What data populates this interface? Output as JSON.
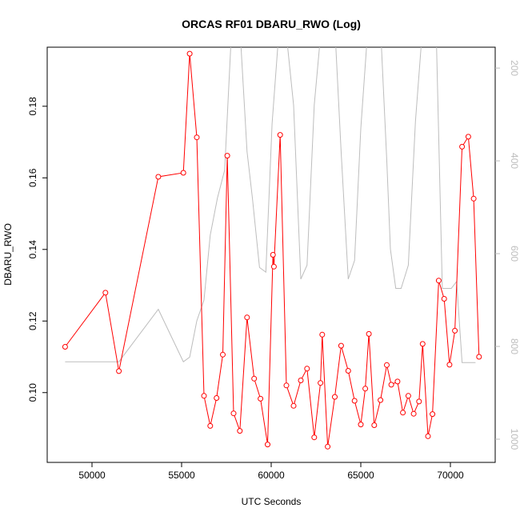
{
  "chart_data": {
    "type": "line",
    "title": "ORCAS RF01 DBARU_RWO (Log)",
    "xlabel": "UTC Seconds",
    "ylabel": "DBARU_RWO",
    "xlim": [
      47500,
      72500
    ],
    "ylim": [
      0.0805,
      0.1965
    ],
    "x_ticks": [
      50000,
      55000,
      60000,
      65000,
      70000
    ],
    "y_ticks": [
      0.1,
      0.12,
      0.14,
      0.16,
      0.18
    ],
    "y_tick_labels": [
      "0.10",
      "0.12",
      "0.14",
      "0.16",
      "0.18"
    ],
    "right_axis": {
      "ylim": [
        1050,
        155
      ],
      "ticks": [
        200,
        400,
        600,
        800,
        1000
      ],
      "tick_labels": [
        "200",
        "400",
        "600",
        "800",
        "1000"
      ]
    },
    "grid": false,
    "series": [
      {
        "color": "#ff0000",
        "marker": "open-circle",
        "x": [
          48500,
          50750,
          51500,
          53700,
          55100,
          55450,
          55850,
          56250,
          56600,
          56950,
          57300,
          57550,
          57900,
          58250,
          58650,
          59050,
          59400,
          59800,
          60100,
          60150,
          60500,
          60850,
          61250,
          61650,
          62000,
          62400,
          62750,
          62850,
          63150,
          63550,
          63900,
          64300,
          64650,
          65000,
          65250,
          65450,
          65750,
          66100,
          66450,
          66700,
          67050,
          67350,
          67650,
          67950,
          68250,
          68450,
          68750,
          69000,
          69350,
          69650,
          69950,
          70250,
          70650,
          71000,
          71300,
          71600
        ],
        "y": [
          0.1128,
          0.1279,
          0.106,
          0.1603,
          0.1614,
          0.1947,
          0.1713,
          0.0991,
          0.0907,
          0.0985,
          0.1106,
          0.1662,
          0.0942,
          0.0893,
          0.121,
          0.1039,
          0.0983,
          0.0855,
          0.1385,
          0.1352,
          0.172,
          0.102,
          0.0963,
          0.1034,
          0.1067,
          0.0875,
          0.1027,
          0.1162,
          0.0849,
          0.0988,
          0.1131,
          0.1061,
          0.0977,
          0.0911,
          0.1011,
          0.1164,
          0.0909,
          0.0979,
          0.1077,
          0.1022,
          0.1031,
          0.0944,
          0.0991,
          0.0941,
          0.0975,
          0.1136,
          0.0878,
          0.094,
          0.1313,
          0.1262,
          0.1078,
          0.1173,
          0.1687,
          0.1715,
          0.1542,
          0.11
        ]
      },
      {
        "color": "#bdbdbd",
        "axis": "right",
        "x": [
          48500,
          50750,
          51500,
          53700,
          55100,
          55450,
          55850,
          56250,
          56600,
          57000,
          57400,
          57800,
          58250,
          58650,
          58950,
          59350,
          59700,
          60050,
          60450,
          60800,
          61250,
          61650,
          62000,
          62400,
          62800,
          63200,
          63550,
          63900,
          64300,
          64650,
          65000,
          65400,
          65750,
          66100,
          66450,
          66650,
          66950,
          67250,
          67650,
          68050,
          68450,
          68750,
          69200,
          69550,
          69800,
          70050,
          70350,
          70650,
          71100,
          71400
        ],
        "y": [
          833,
          833,
          833,
          720,
          833,
          823,
          745,
          700,
          560,
          480,
          420,
          110,
          110,
          380,
          480,
          630,
          640,
          320,
          110,
          110,
          280,
          655,
          625,
          280,
          110,
          110,
          110,
          380,
          655,
          615,
          330,
          110,
          110,
          110,
          400,
          590,
          675,
          675,
          625,
          315,
          110,
          110,
          110,
          675,
          675,
          675,
          660,
          835,
          835,
          835
        ]
      }
    ]
  }
}
